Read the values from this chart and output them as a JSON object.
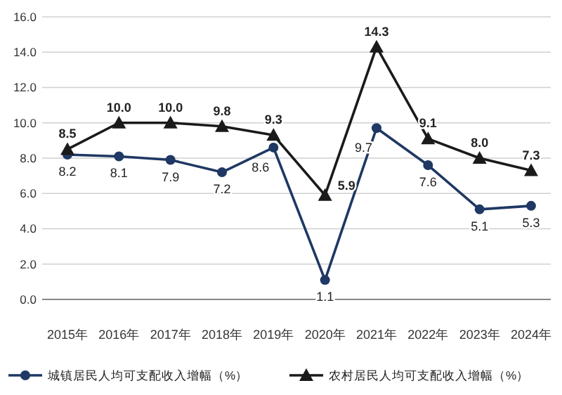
{
  "chart_data": {
    "type": "line",
    "categories": [
      "2015年",
      "2016年",
      "2017年",
      "2018年",
      "2019年",
      "2020年",
      "2021年",
      "2022年",
      "2023年",
      "2024年"
    ],
    "series": [
      {
        "name": "城镇居民人均可支配收入增幅（%）",
        "color": "#1f3864",
        "marker": "circle",
        "values": [
          8.2,
          8.1,
          7.9,
          7.2,
          8.6,
          1.1,
          9.7,
          7.6,
          5.1,
          5.3
        ],
        "value_labels": [
          "8.2",
          "8.1",
          "7.9",
          "7.2",
          "8.6",
          "1.1",
          "9.7",
          "7.6",
          "5.1",
          "5.3"
        ]
      },
      {
        "name": "农村居民人均可支配收入增幅（%）",
        "color": "#1a1a1a",
        "marker": "triangle",
        "values": [
          8.5,
          10.0,
          10.0,
          9.8,
          9.3,
          5.9,
          14.3,
          9.1,
          8.0,
          7.3
        ],
        "value_labels": [
          "8.5",
          "10.0",
          "10.0",
          "9.8",
          "9.3",
          "5.9",
          "14.3",
          "9.1",
          "8.0",
          "7.3"
        ]
      }
    ],
    "ylim": [
      0,
      16
    ],
    "yticks": [
      {
        "value": 0,
        "label": "0.0"
      },
      {
        "value": 2,
        "label": "2.0"
      },
      {
        "value": 4,
        "label": "4.0"
      },
      {
        "value": 6,
        "label": "6.0"
      },
      {
        "value": 8,
        "label": "8.0"
      },
      {
        "value": 10,
        "label": "10.0"
      },
      {
        "value": 12,
        "label": "12.0"
      },
      {
        "value": 14,
        "label": "14.0"
      },
      {
        "value": 16,
        "label": "16.0"
      }
    ],
    "grid": "y",
    "legend": "bottom"
  }
}
